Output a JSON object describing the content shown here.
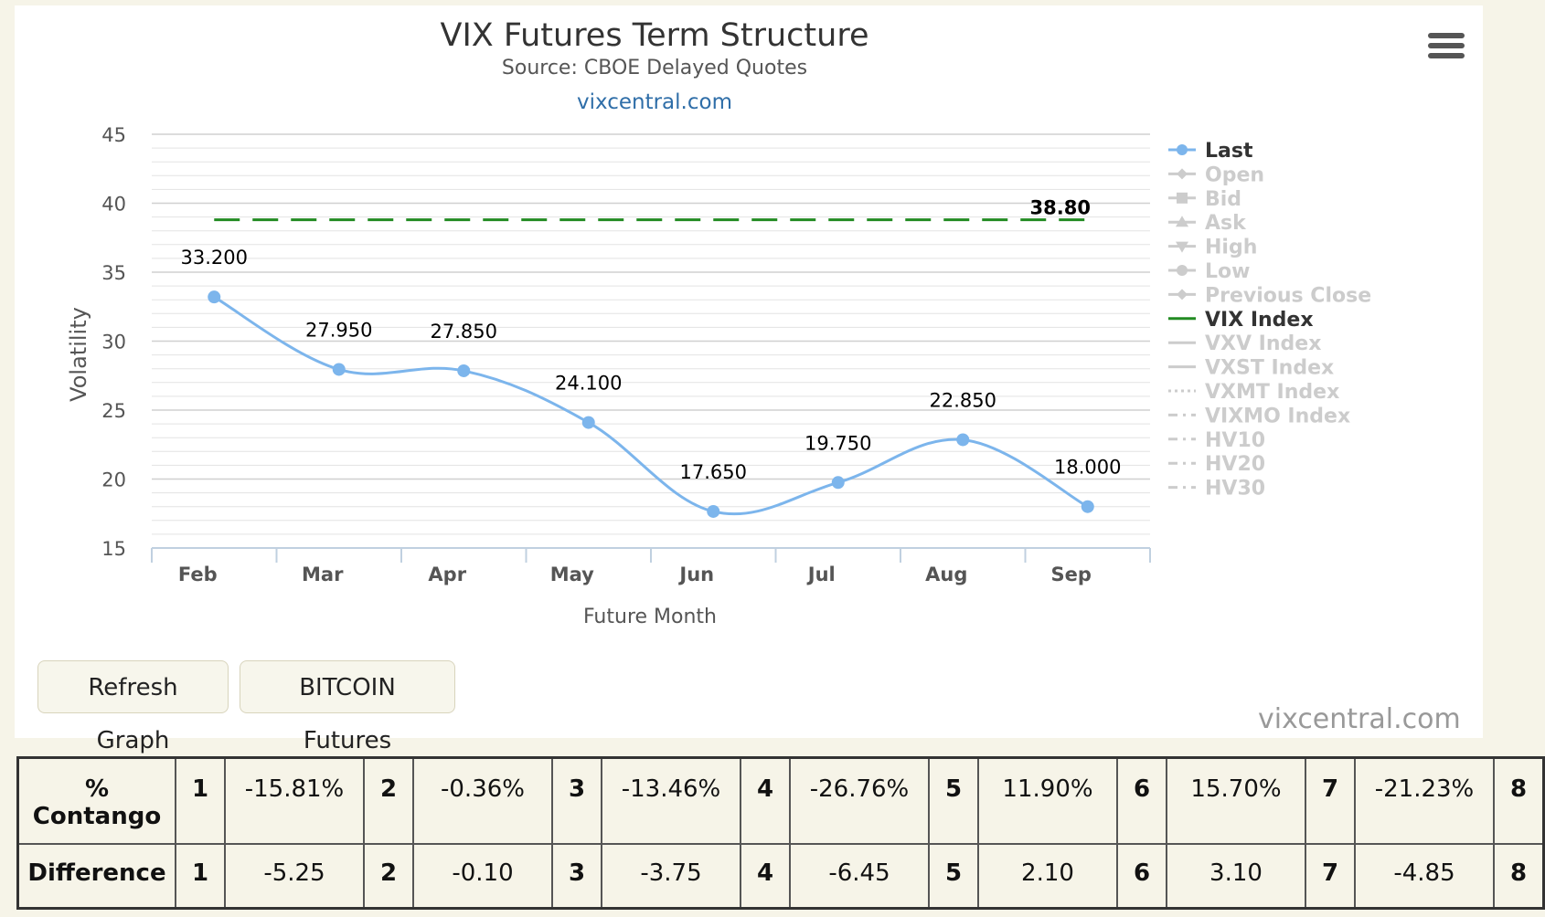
{
  "chart_data": {
    "type": "line",
    "title": "VIX Futures Term Structure",
    "subtitle": "Source: CBOE Delayed Quotes",
    "source_link": "vixcentral.com",
    "xlabel": "Future Month",
    "ylabel": "Volatility",
    "categories": [
      "Feb",
      "Mar",
      "Apr",
      "May",
      "Jun",
      "Jul",
      "Aug",
      "Sep"
    ],
    "ylim": [
      15,
      45
    ],
    "yticks": [
      15,
      20,
      25,
      30,
      35,
      40,
      45
    ],
    "grid": true,
    "legend_position": "right",
    "series": [
      {
        "name": "Last",
        "values": [
          33.2,
          27.95,
          27.85,
          24.1,
          17.65,
          19.75,
          22.85,
          18.0
        ],
        "labels": [
          "33.200",
          "27.950",
          "27.850",
          "24.100",
          "17.650",
          "19.750",
          "22.850",
          "18.000"
        ],
        "color": "#7cb5ec",
        "style": "smooth-line-markers"
      },
      {
        "name": "VIX Index",
        "values": [
          38.8,
          38.8,
          38.8,
          38.8,
          38.8,
          38.8,
          38.8,
          38.8
        ],
        "end_label": "38.80",
        "color": "#228b22",
        "style": "dashed"
      }
    ],
    "legend": [
      {
        "name": "Last",
        "active": true,
        "marker": "circle-line"
      },
      {
        "name": "Open",
        "active": false,
        "marker": "diamond-line"
      },
      {
        "name": "Bid",
        "active": false,
        "marker": "square-line"
      },
      {
        "name": "Ask",
        "active": false,
        "marker": "triangle-line"
      },
      {
        "name": "High",
        "active": false,
        "marker": "triangle-down-line"
      },
      {
        "name": "Low",
        "active": false,
        "marker": "circle-line"
      },
      {
        "name": "Previous Close",
        "active": false,
        "marker": "diamond-line"
      },
      {
        "name": "VIX Index",
        "active": true,
        "marker": "solid-line"
      },
      {
        "name": "VXV Index",
        "active": false,
        "marker": "solid-line"
      },
      {
        "name": "VXST Index",
        "active": false,
        "marker": "solid-line"
      },
      {
        "name": "VXMT Index",
        "active": false,
        "marker": "dotted-line"
      },
      {
        "name": "VIXMO Index",
        "active": false,
        "marker": "dashdot-line"
      },
      {
        "name": "HV10",
        "active": false,
        "marker": "dashdot-line"
      },
      {
        "name": "HV20",
        "active": false,
        "marker": "dashdot-line"
      },
      {
        "name": "HV30",
        "active": false,
        "marker": "dashdot-line"
      }
    ]
  },
  "buttons": {
    "refresh": "Refresh Graph",
    "bitcoin": "BITCOIN Futures"
  },
  "credit": "vixcentral.com",
  "table": {
    "contango_header": "% Contango",
    "difference_header": "Difference",
    "indices": [
      "1",
      "2",
      "3",
      "4",
      "5",
      "6",
      "7",
      "8"
    ],
    "contango": [
      "-15.81%",
      "-0.36%",
      "-13.46%",
      "-26.76%",
      "11.90%",
      "15.70%",
      "-21.23%"
    ],
    "difference": [
      "-5.25",
      "-0.10",
      "-3.75",
      "-6.45",
      "2.10",
      "3.10",
      "-4.85"
    ]
  },
  "colors": {
    "last_series": "#7cb5ec",
    "vix_series": "#228b22",
    "link": "#2f6ea8",
    "inactive_legend": "#cccccc",
    "page_bg": "#f6f4e8"
  }
}
